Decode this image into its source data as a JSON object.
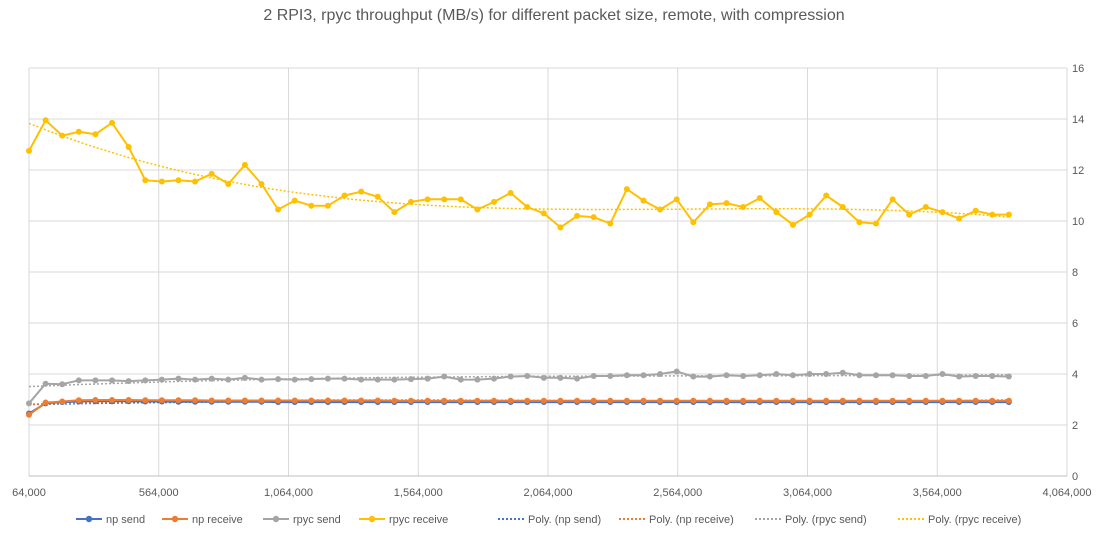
{
  "chart_data": {
    "type": "line",
    "title": "2 RPI3, rpyc throughput (MB/s) for different packet size, remote, with compression",
    "xlabel": "",
    "ylabel": "",
    "xlim": [
      64000,
      4064000
    ],
    "ylim": [
      0,
      16
    ],
    "x_ticks": [
      64000,
      564000,
      1064000,
      1564000,
      2064000,
      2564000,
      3064000,
      3564000,
      4064000
    ],
    "x_tick_labels": [
      "64,000",
      "564,000",
      "1,064,000",
      "1,564,000",
      "2,064,000",
      "2,564,000",
      "3,064,000",
      "3,564,000",
      "4,064,000"
    ],
    "y_ticks": [
      0,
      2,
      4,
      6,
      8,
      10,
      12,
      14,
      16
    ],
    "y_tick_labels": [
      "0",
      "2",
      "4",
      "6",
      "8",
      "10",
      "12",
      "14",
      "16"
    ],
    "y_axis_side": "right",
    "grid": true,
    "legend_position": "bottom",
    "x": [
      64000,
      128000,
      192000,
      256000,
      320000,
      384000,
      448000,
      512000,
      576000,
      640000,
      704000,
      768000,
      832000,
      896000,
      960000,
      1024000,
      1088000,
      1152000,
      1216000,
      1280000,
      1344000,
      1408000,
      1472000,
      1536000,
      1600000,
      1664000,
      1728000,
      1792000,
      1856000,
      1920000,
      1984000,
      2048000,
      2112000,
      2176000,
      2240000,
      2304000,
      2368000,
      2432000,
      2496000,
      2560000,
      2624000,
      2688000,
      2752000,
      2816000,
      2880000,
      2944000,
      3008000,
      3072000,
      3136000,
      3200000,
      3264000,
      3328000,
      3392000,
      3456000,
      3520000,
      3584000,
      3648000,
      3712000,
      3776000,
      3840000
    ],
    "series": [
      {
        "name": "np send",
        "color": "#4472C4",
        "marker": true,
        "values": [
          2.45,
          2.85,
          2.9,
          2.92,
          2.93,
          2.93,
          2.93,
          2.92,
          2.92,
          2.91,
          2.91,
          2.91,
          2.91,
          2.91,
          2.91,
          2.9,
          2.9,
          2.9,
          2.9,
          2.9,
          2.9,
          2.9,
          2.9,
          2.9,
          2.9,
          2.9,
          2.9,
          2.9,
          2.9,
          2.9,
          2.9,
          2.9,
          2.9,
          2.9,
          2.9,
          2.9,
          2.9,
          2.9,
          2.9,
          2.9,
          2.9,
          2.9,
          2.9,
          2.9,
          2.9,
          2.9,
          2.9,
          2.9,
          2.9,
          2.9,
          2.9,
          2.9,
          2.9,
          2.9,
          2.9,
          2.9,
          2.9,
          2.9,
          2.9,
          2.9
        ]
      },
      {
        "name": "np receive",
        "color": "#ED7D31",
        "marker": true,
        "values": [
          2.4,
          2.88,
          2.92,
          2.97,
          2.98,
          2.98,
          2.98,
          2.97,
          2.97,
          2.97,
          2.97,
          2.96,
          2.96,
          2.96,
          2.96,
          2.96,
          2.96,
          2.96,
          2.96,
          2.96,
          2.96,
          2.96,
          2.95,
          2.95,
          2.95,
          2.95,
          2.95,
          2.95,
          2.95,
          2.95,
          2.95,
          2.95,
          2.95,
          2.95,
          2.95,
          2.95,
          2.95,
          2.95,
          2.95,
          2.95,
          2.95,
          2.95,
          2.95,
          2.95,
          2.95,
          2.95,
          2.95,
          2.95,
          2.95,
          2.95,
          2.95,
          2.95,
          2.95,
          2.95,
          2.95,
          2.95,
          2.95,
          2.95,
          2.95,
          2.95
        ]
      },
      {
        "name": "rpyc send",
        "color": "#A5A5A5",
        "marker": true,
        "values": [
          2.85,
          3.62,
          3.6,
          3.75,
          3.75,
          3.75,
          3.72,
          3.75,
          3.78,
          3.82,
          3.78,
          3.82,
          3.78,
          3.85,
          3.78,
          3.8,
          3.78,
          3.8,
          3.82,
          3.82,
          3.78,
          3.78,
          3.78,
          3.8,
          3.82,
          3.9,
          3.78,
          3.78,
          3.82,
          3.9,
          3.92,
          3.85,
          3.85,
          3.82,
          3.92,
          3.92,
          3.95,
          3.95,
          4.0,
          4.1,
          3.9,
          3.9,
          3.95,
          3.92,
          3.95,
          4.0,
          3.95,
          4.0,
          4.0,
          4.05,
          3.95,
          3.95,
          3.95,
          3.92,
          3.92,
          4.0,
          3.9,
          3.92,
          3.92,
          3.9
        ]
      },
      {
        "name": "rpyc receive",
        "color": "#FFC000",
        "marker": true,
        "values": [
          12.75,
          13.95,
          13.35,
          13.5,
          13.4,
          13.85,
          12.9,
          11.6,
          11.55,
          11.6,
          11.55,
          11.85,
          11.45,
          12.2,
          11.45,
          10.45,
          10.8,
          10.6,
          10.6,
          11.0,
          11.15,
          10.95,
          10.35,
          10.75,
          10.85,
          10.85,
          10.85,
          10.45,
          10.75,
          11.1,
          10.55,
          10.3,
          9.75,
          10.2,
          10.15,
          9.9,
          11.25,
          10.8,
          10.45,
          10.85,
          9.95,
          10.65,
          10.7,
          10.55,
          10.9,
          10.35,
          9.85,
          10.25,
          11.0,
          10.55,
          9.95,
          9.9,
          10.85,
          10.25,
          10.55,
          10.35,
          10.1,
          10.4,
          10.25,
          10.25
        ]
      }
    ],
    "trendlines": [
      {
        "name": "Poly. (np send)",
        "color": "#4472C4",
        "style": "dotted",
        "of": "np send"
      },
      {
        "name": "Poly. (np receive)",
        "color": "#ED7D31",
        "style": "dotted",
        "of": "np receive"
      },
      {
        "name": "Poly. (rpyc send)",
        "color": "#A5A5A5",
        "style": "dotted",
        "of": "rpyc send"
      },
      {
        "name": "Poly. (rpyc receive)",
        "color": "#FFC000",
        "style": "dotted",
        "of": "rpyc receive"
      }
    ]
  }
}
